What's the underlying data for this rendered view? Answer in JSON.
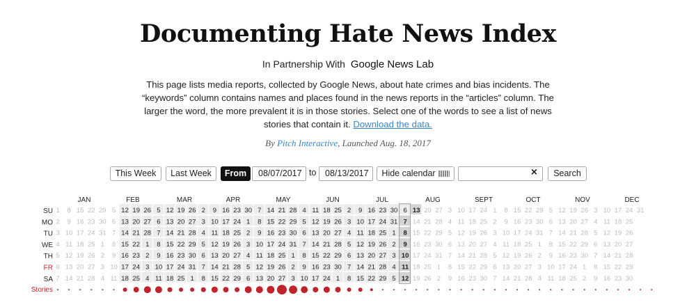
{
  "header": {
    "title": "Documenting Hate News Index",
    "partner_prefix": "In Partnership With",
    "partner_logo": "Google News Lab",
    "intro_text": "This page lists media reports, collected by Google News, about hate crimes and bias incidents. The “keywords” column contains names and places found in the news reports in the “articles” column. The larger the word, the more prevalent it is in those stories. Select one of the words to see a list of news stories that contain it.",
    "download_link": "Download the data.",
    "byline_prefix": "By",
    "byline_author": "Pitch Interactive",
    "byline_suffix": ", Launched Aug. 18, 2017"
  },
  "controls": {
    "this_week": "This Week",
    "last_week": "Last Week",
    "from_label": "From",
    "from_date": "08/07/2017",
    "to_label": "to",
    "to_date": "08/13/2017",
    "hide_calendar": "Hide calendar",
    "search_value": "",
    "clear_icon": "×",
    "search_button": "Search"
  },
  "calendar": {
    "months": [
      "JAN",
      "FEB",
      "MAR",
      "APR",
      "MAY",
      "JUN",
      "JUL",
      "AUG",
      "SEPT",
      "OCT",
      "NOV",
      "DEC"
    ],
    "weekdays": [
      "SU",
      "MO",
      "TU",
      "WE",
      "TH",
      "FR",
      "SA"
    ],
    "highlight_weekday": "FR",
    "stories_label": "Stories",
    "year_first_sunday_day_of_week_offset": 0,
    "data_range": {
      "start": "2017-02-12",
      "end": "2017-08-12"
    },
    "selected_week": {
      "start": "2017-08-07",
      "end": "2017-08-13"
    },
    "stories_per_week": [
      1,
      1,
      1,
      1,
      1,
      1,
      6,
      8,
      10,
      10,
      7,
      6,
      6,
      7,
      9,
      8,
      7,
      10,
      10,
      11,
      14,
      12,
      10,
      8,
      9,
      8,
      6,
      6,
      4,
      1,
      1,
      1,
      1,
      1,
      1,
      1,
      1,
      1,
      1,
      1,
      1,
      1,
      1,
      1,
      1,
      1,
      1,
      1,
      1,
      1,
      1,
      1,
      1,
      1
    ]
  },
  "colors": {
    "accent": "#c0242b",
    "link": "#3a86c8",
    "active_cell": "#ececec",
    "selected_cell": "#d3d3d3",
    "inactive_text": "#bdbdbd"
  }
}
